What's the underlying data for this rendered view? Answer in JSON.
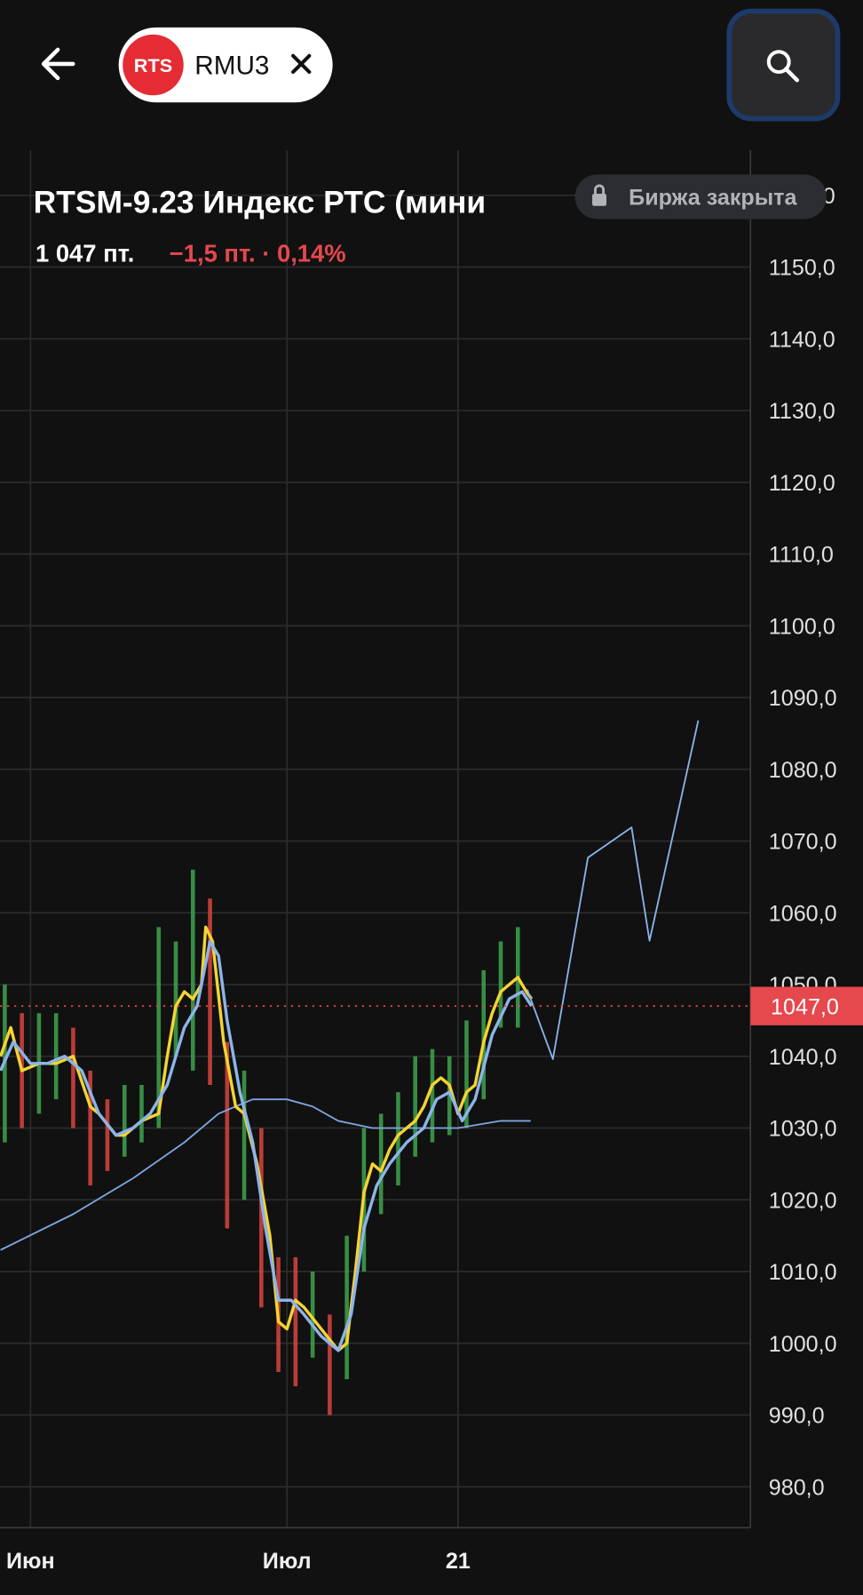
{
  "header": {
    "ticker": "RMU3",
    "exchange_badge": "RTS"
  },
  "instrument": {
    "title": "RTSM-9.23 Индекс РТС (мини",
    "price": "1 047 пт.",
    "change": "−1,5 пт. · 0,14%"
  },
  "status": "Биржа закрыта",
  "chart_data": {
    "type": "line",
    "xlim": [
      -3.56,
      84.2
    ],
    "ylim": [
      974.3,
      1166.3
    ],
    "xticks": [
      {
        "value": 0,
        "label": "Июн"
      },
      {
        "value": 30,
        "label": "Июл"
      },
      {
        "value": 50,
        "label": "21"
      }
    ],
    "yticks": [
      {
        "value": 980,
        "label": "980,0"
      },
      {
        "value": 990,
        "label": "990,0"
      },
      {
        "value": 1000,
        "label": "1000,0"
      },
      {
        "value": 1010,
        "label": "1010,0"
      },
      {
        "value": 1020,
        "label": "1020,0"
      },
      {
        "value": 1030,
        "label": "1030,0"
      },
      {
        "value": 1040,
        "label": "1040,0"
      },
      {
        "value": 1050,
        "label": "1050,0"
      },
      {
        "value": 1060,
        "label": "1060,0"
      },
      {
        "value": 1070,
        "label": "1070,0"
      },
      {
        "value": 1080,
        "label": "1080,0"
      },
      {
        "value": 1090,
        "label": "1090,0"
      },
      {
        "value": 1100,
        "label": "1100,0"
      },
      {
        "value": 1110,
        "label": "1110,0"
      },
      {
        "value": 1120,
        "label": "1120,0"
      },
      {
        "value": 1130,
        "label": "1130,0"
      },
      {
        "value": 1140,
        "label": "1140,0"
      },
      {
        "value": 1150,
        "label": "1150,0"
      },
      {
        "value": 1160,
        "label": "1160,0"
      }
    ],
    "grid": true,
    "candles": {
      "up_color": "#3fa34d",
      "down_color": "#d8453f",
      "x": [
        -3,
        -1,
        1,
        3,
        5,
        7,
        9,
        11,
        13,
        15,
        17,
        19,
        21,
        23,
        25,
        27,
        29,
        31,
        33,
        35,
        37,
        39,
        41,
        43,
        45,
        47,
        49,
        51,
        53,
        55,
        57
      ],
      "low": [
        1028,
        1030,
        1032,
        1034,
        1030,
        1022,
        1024,
        1026,
        1028,
        1030,
        1040,
        1038,
        1036,
        1016,
        1020,
        1005,
        996,
        994,
        998,
        990,
        995,
        1010,
        1018,
        1022,
        1026,
        1028,
        1029,
        1030,
        1034,
        1044,
        1044
      ],
      "high": [
        1050,
        1046,
        1046,
        1046,
        1044,
        1038,
        1034,
        1036,
        1036,
        1058,
        1056,
        1066,
        1062,
        1042,
        1038,
        1030,
        1012,
        1012,
        1010,
        1004,
        1015,
        1030,
        1032,
        1035,
        1040,
        1041,
        1040,
        1045,
        1052,
        1056,
        1058
      ]
    },
    "series": [
      {
        "color": "#7ea6e0",
        "width": 1.6,
        "x": [
          -3.5,
          5,
          12,
          18,
          22,
          26,
          30,
          33,
          36,
          40,
          45,
          50,
          55,
          58.5
        ],
        "values": [
          1013,
          1018,
          1023,
          1028,
          1032,
          1034,
          1034,
          1033,
          1031,
          1030,
          1030,
          1030,
          1031,
          1031
        ]
      },
      {
        "color": "#f5d431",
        "width": 3,
        "x": [
          -3.5,
          -2.3,
          -1,
          1,
          3,
          5,
          7,
          8,
          10,
          11,
          13,
          15,
          16,
          17,
          18,
          19,
          20,
          20.5,
          21.3,
          22.6,
          24,
          25,
          26.5,
          28,
          29,
          30,
          31,
          32,
          34,
          36,
          37,
          38,
          39,
          40,
          41,
          42,
          43,
          44,
          45,
          46,
          47,
          48,
          49,
          50,
          51,
          52,
          53,
          54,
          55,
          56,
          57,
          58,
          58.6
        ],
        "values": [
          1040,
          1044,
          1038,
          1039,
          1039,
          1040,
          1033,
          1032,
          1029,
          1029,
          1031,
          1032,
          1040,
          1047,
          1049,
          1048,
          1050,
          1058,
          1056,
          1042,
          1033,
          1032,
          1025,
          1015,
          1003,
          1002,
          1006,
          1005,
          1002,
          999,
          1000,
          1010,
          1021,
          1025,
          1024,
          1027,
          1029,
          1030,
          1031,
          1033,
          1036,
          1037,
          1036,
          1032,
          1035,
          1036,
          1042,
          1046,
          1049,
          1050,
          1051,
          1049,
          1048
        ]
      },
      {
        "color": "#8cb4ea",
        "width": 3,
        "x": [
          -3.5,
          -2,
          0,
          2,
          4,
          6,
          8,
          10,
          12,
          14,
          16,
          18,
          19.5,
          21,
          22,
          23,
          24.5,
          26,
          27.5,
          29,
          30.5,
          32,
          34,
          36,
          37.5,
          39,
          40.5,
          42,
          44,
          46,
          47.5,
          49,
          50.5,
          52,
          54,
          56,
          57.5,
          58.6
        ],
        "values": [
          1038,
          1042,
          1039,
          1039,
          1040,
          1038,
          1032,
          1029,
          1030,
          1032,
          1036,
          1044,
          1047,
          1056,
          1054,
          1045,
          1035,
          1028,
          1016,
          1006,
          1006,
          1004,
          1001,
          999,
          1004,
          1016,
          1022,
          1025,
          1028,
          1030,
          1034,
          1035,
          1031,
          1034,
          1043,
          1048,
          1049,
          1047
        ]
      },
      {
        "color": "#8cb4ea",
        "width": 1.6,
        "x": [
          58.1,
          61.1,
          65.2,
          70.3,
          72.4,
          78.1
        ],
        "values": [
          1049.3,
          1039.6,
          1067.7,
          1071.9,
          1056.1,
          1086.8
        ]
      }
    ],
    "last_price": {
      "value": 1047,
      "label": "1047,0",
      "color": "#e5484d"
    }
  }
}
